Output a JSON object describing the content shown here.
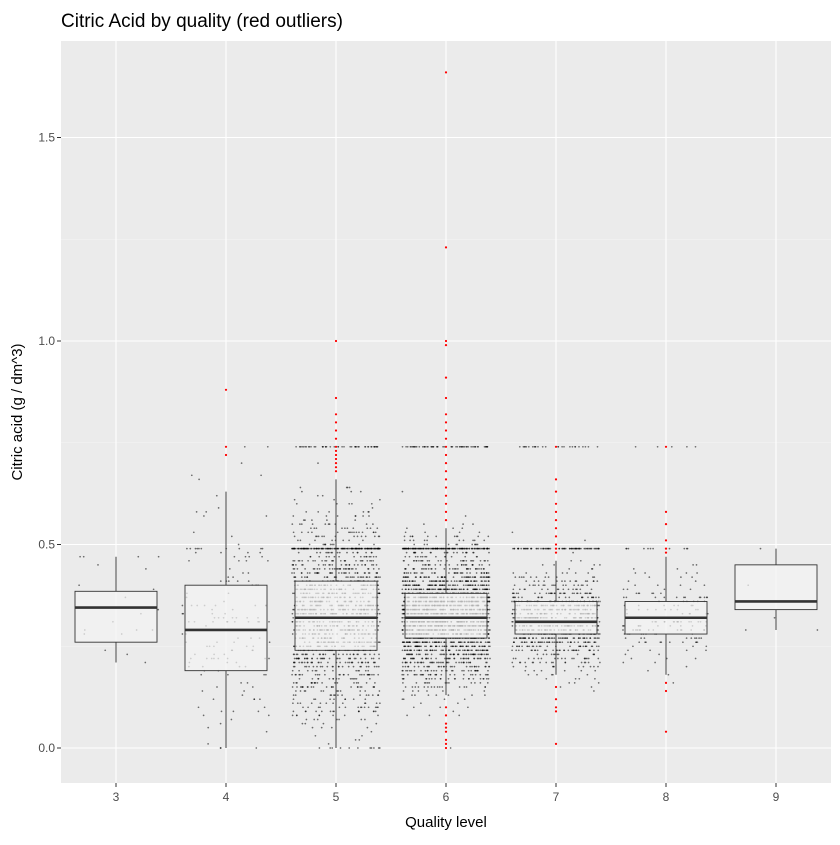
{
  "chart_data": {
    "type": "boxplot",
    "title": "Citric Acid by quality (red outliers)",
    "xlabel": "Quality level",
    "ylabel": "Citric acid (g / dm^3)",
    "ylim": [
      -0.09,
      1.7
    ],
    "categories": [
      "3",
      "4",
      "5",
      "6",
      "7",
      "8",
      "9"
    ],
    "y_ticks": [
      0.0,
      0.5,
      1.0,
      1.5
    ],
    "y_tick_labels": [
      "0.0",
      "0.5",
      "1.0",
      "1.5"
    ],
    "grid": true,
    "background": "#EBEBEB",
    "box_fill": "#F2F2F2",
    "point_color": "#000000",
    "outlier_color": "#FF0000",
    "boxes": [
      {
        "category": "3",
        "min": 0.21,
        "q1": 0.26,
        "median": 0.345,
        "q3": 0.385,
        "max": 0.47
      },
      {
        "category": "4",
        "min": 0.0,
        "q1": 0.19,
        "median": 0.29,
        "q3": 0.4,
        "max": 0.63
      },
      {
        "category": "5",
        "min": 0.0,
        "q1": 0.24,
        "median": 0.32,
        "q3": 0.41,
        "max": 0.66
      },
      {
        "category": "6",
        "min": 0.13,
        "q1": 0.27,
        "median": 0.32,
        "q3": 0.38,
        "max": 0.54
      },
      {
        "category": "7",
        "min": 0.18,
        "q1": 0.28,
        "median": 0.31,
        "q3": 0.36,
        "max": 0.46
      },
      {
        "category": "8",
        "min": 0.18,
        "q1": 0.28,
        "median": 0.32,
        "q3": 0.36,
        "max": 0.47
      },
      {
        "category": "9",
        "min": 0.29,
        "q1": 0.34,
        "median": 0.36,
        "q3": 0.45,
        "max": 0.49
      }
    ],
    "outliers": [
      {
        "category": "4",
        "values": [
          0.88,
          0.74,
          0.72
        ]
      },
      {
        "category": "5",
        "values": [
          1.0,
          0.86,
          0.82,
          0.8,
          0.78,
          0.76,
          0.74,
          0.73,
          0.72,
          0.71,
          0.7,
          0.69,
          0.68
        ]
      },
      {
        "category": "6",
        "values": [
          1.66,
          1.23,
          1.0,
          0.99,
          0.91,
          0.86,
          0.82,
          0.8,
          0.78,
          0.76,
          0.74,
          0.72,
          0.7,
          0.68,
          0.66,
          0.64,
          0.62,
          0.6,
          0.58,
          0.56,
          0.1,
          0.08,
          0.06,
          0.05,
          0.04,
          0.02,
          0.01,
          0.0
        ]
      },
      {
        "category": "7",
        "values": [
          0.74,
          0.66,
          0.63,
          0.6,
          0.58,
          0.56,
          0.54,
          0.52,
          0.5,
          0.49,
          0.48,
          0.15,
          0.12,
          0.1,
          0.09,
          0.01
        ]
      },
      {
        "category": "8",
        "values": [
          0.74,
          0.58,
          0.55,
          0.51,
          0.49,
          0.48,
          0.16,
          0.14,
          0.04
        ]
      }
    ],
    "jitter": [
      {
        "category": "3",
        "count": 20,
        "lo": 0.21,
        "hi": 0.47
      },
      {
        "category": "4",
        "count": 160,
        "lo": 0.0,
        "hi": 0.74
      },
      {
        "category": "5",
        "count": 1500,
        "lo": 0.0,
        "hi": 0.75
      },
      {
        "category": "6",
        "count": 2200,
        "lo": 0.0,
        "hi": 0.75
      },
      {
        "category": "7",
        "count": 880,
        "lo": 0.0,
        "hi": 0.74
      },
      {
        "category": "8",
        "count": 175,
        "lo": 0.04,
        "hi": 0.74
      },
      {
        "category": "9",
        "count": 5,
        "lo": 0.29,
        "hi": 0.49
      }
    ]
  }
}
